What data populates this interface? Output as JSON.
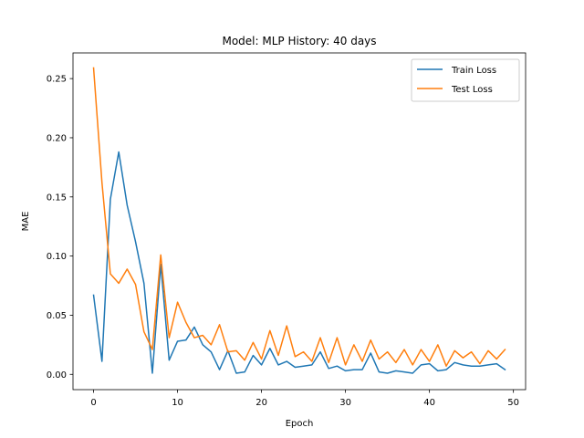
{
  "chart_data": {
    "type": "line",
    "title": "Model: MLP  History: 40 days",
    "xlabel": "Epoch",
    "ylabel": "MAE",
    "xlim": [
      -2.45,
      51.45
    ],
    "ylim": [
      -0.0129,
      0.2717
    ],
    "xticks": [
      0,
      10,
      20,
      30,
      40,
      50
    ],
    "yticks": [
      0.0,
      0.05,
      0.1,
      0.15,
      0.2,
      0.25
    ],
    "ytick_labels": [
      "0.00",
      "0.05",
      "0.10",
      "0.15",
      "0.20",
      "0.25"
    ],
    "legend_position": "top-right",
    "x": [
      0,
      1,
      2,
      3,
      4,
      5,
      6,
      7,
      8,
      9,
      10,
      11,
      12,
      13,
      14,
      15,
      16,
      17,
      18,
      19,
      20,
      21,
      22,
      23,
      24,
      25,
      26,
      27,
      28,
      29,
      30,
      31,
      32,
      33,
      34,
      35,
      36,
      37,
      38,
      39,
      40,
      41,
      42,
      43,
      44,
      45,
      46,
      47,
      48,
      49
    ],
    "series": [
      {
        "name": "Train Loss",
        "color": "#1f77b4",
        "values": [
          0.067,
          0.011,
          0.148,
          0.188,
          0.143,
          0.112,
          0.077,
          0.001,
          0.093,
          0.012,
          0.028,
          0.029,
          0.04,
          0.025,
          0.019,
          0.004,
          0.02,
          0.001,
          0.002,
          0.016,
          0.008,
          0.022,
          0.008,
          0.011,
          0.006,
          0.007,
          0.008,
          0.019,
          0.005,
          0.007,
          0.003,
          0.004,
          0.004,
          0.018,
          0.002,
          0.001,
          0.003,
          0.002,
          0.001,
          0.008,
          0.009,
          0.003,
          0.004,
          0.01,
          0.008,
          0.007,
          0.007,
          0.008,
          0.009,
          0.004
        ]
      },
      {
        "name": "Test Loss",
        "color": "#ff7f0e",
        "values": [
          0.259,
          0.162,
          0.085,
          0.077,
          0.089,
          0.076,
          0.036,
          0.021,
          0.101,
          0.031,
          0.061,
          0.044,
          0.031,
          0.033,
          0.025,
          0.042,
          0.019,
          0.02,
          0.012,
          0.027,
          0.013,
          0.037,
          0.016,
          0.041,
          0.015,
          0.019,
          0.011,
          0.031,
          0.01,
          0.031,
          0.008,
          0.025,
          0.011,
          0.029,
          0.013,
          0.019,
          0.01,
          0.021,
          0.008,
          0.021,
          0.011,
          0.025,
          0.007,
          0.02,
          0.014,
          0.019,
          0.009,
          0.02,
          0.013,
          0.021
        ]
      }
    ]
  }
}
